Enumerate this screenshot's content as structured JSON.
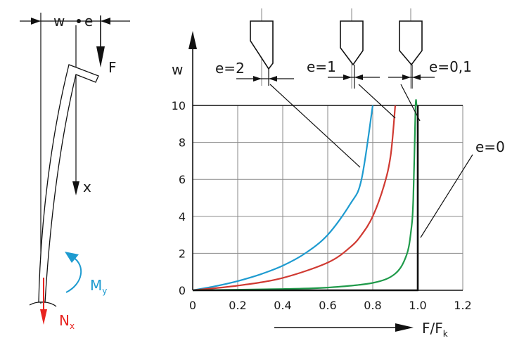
{
  "chart_data": {
    "type": "line",
    "xlabel": "F/F",
    "xlabel_sub": "k",
    "ylabel": "w",
    "xlim": [
      0,
      1.2
    ],
    "ylim": [
      0,
      10
    ],
    "x_ticks": [
      "0",
      "0.2",
      "0.4",
      "0.6",
      "0.8",
      "1.0",
      "1.2"
    ],
    "y_ticks": [
      "0",
      "2",
      "4",
      "6",
      "8",
      "10"
    ],
    "grid": true,
    "series": [
      {
        "name": "e=2",
        "color": "#1e9bd0",
        "e": 2,
        "x": [
          0,
          0.1,
          0.2,
          0.3,
          0.4,
          0.5,
          0.6,
          0.7,
          0.75,
          0.8
        ],
        "y": [
          0,
          0.22,
          0.5,
          0.86,
          1.33,
          2.0,
          3.0,
          4.67,
          6.0,
          10.0
        ]
      },
      {
        "name": "e=1",
        "color": "#d03a32",
        "e": 1,
        "x": [
          0,
          0.2,
          0.4,
          0.6,
          0.7,
          0.75,
          0.8,
          0.85,
          0.88,
          0.9
        ],
        "y": [
          0,
          0.25,
          0.67,
          1.5,
          2.33,
          3.0,
          4.0,
          5.67,
          7.33,
          10.0
        ]
      },
      {
        "name": "e=0,1",
        "color": "#1f9a4a",
        "e": 0.1,
        "x": [
          0,
          0.4,
          0.6,
          0.8,
          0.9,
          0.95,
          0.97,
          0.98,
          0.99,
          0.995,
          1.0
        ],
        "y": [
          0,
          0.07,
          0.15,
          0.4,
          0.9,
          1.9,
          3.2,
          4.9,
          9.9,
          10.0,
          10.0
        ]
      },
      {
        "name": "e=0",
        "color": "#111111",
        "e": 0,
        "x": [
          0,
          1.0,
          1.0
        ],
        "y": [
          0,
          0,
          10
        ]
      }
    ],
    "annotations": [
      "e=2",
      "e=1",
      "e=0,1",
      "e=0"
    ]
  },
  "beam_diagram": {
    "w_label": "w",
    "e_label": "e",
    "force_label": "F",
    "x_label": "x",
    "moment_label": "M",
    "moment_sub": "y",
    "normal_label": "N",
    "normal_sub": "x",
    "moment_color": "#1e9bd0",
    "normal_color": "#e8231f"
  }
}
